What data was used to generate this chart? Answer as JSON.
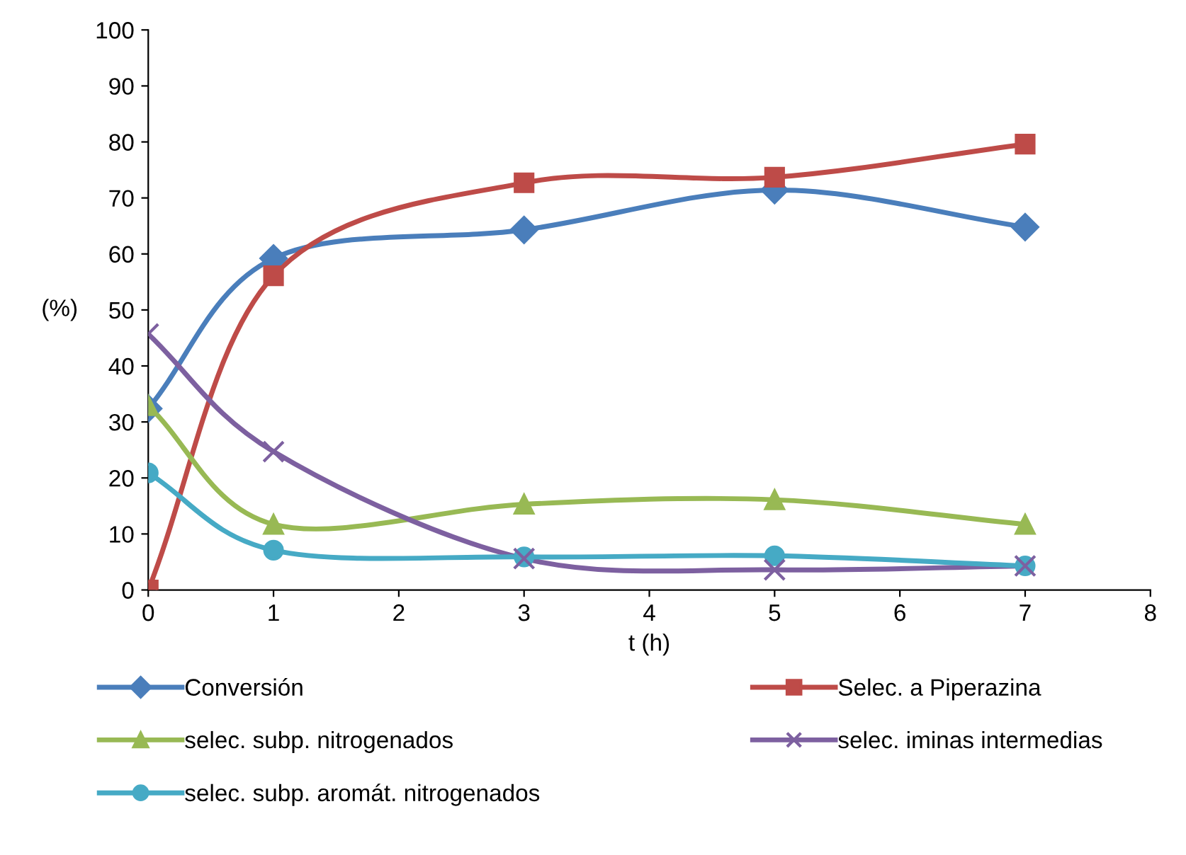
{
  "chart_data": {
    "type": "line",
    "xlabel": "t (h)",
    "ylabel": "(%)",
    "x": [
      0,
      1,
      3,
      5,
      7
    ],
    "xlim": [
      0,
      8
    ],
    "xticks": [
      0,
      1,
      2,
      3,
      4,
      5,
      6,
      7,
      8
    ],
    "ylim": [
      0,
      100
    ],
    "yticks": [
      0,
      10,
      20,
      30,
      40,
      50,
      60,
      70,
      80,
      90,
      100
    ],
    "grid": false,
    "legend": "bottom",
    "line_style": "solid",
    "series": [
      {
        "name": "Conversión",
        "color": "#4a7ebb",
        "marker": "diamond",
        "values": [
          32.4,
          59.2,
          64.3,
          71.4,
          64.8
        ]
      },
      {
        "name": "Selec. a Piperazina",
        "color": "#be4b48",
        "marker": "square",
        "values": [
          0,
          56.1,
          72.7,
          73.7,
          79.6
        ]
      },
      {
        "name": "selec. subp. nitrogenados",
        "color": "#98b954",
        "marker": "triangle",
        "values": [
          32.9,
          11.7,
          15.3,
          16.1,
          11.7
        ]
      },
      {
        "name": "selec. iminas intermedias",
        "color": "#7d60a0",
        "marker": "cross",
        "values": [
          45.7,
          24.7,
          5.6,
          3.6,
          4.3
        ]
      },
      {
        "name": "selec. subp. aromát. nitrogenados",
        "color": "#46aac5",
        "marker": "circle",
        "values": [
          20.9,
          7.1,
          5.9,
          6.1,
          4.3
        ]
      }
    ]
  }
}
